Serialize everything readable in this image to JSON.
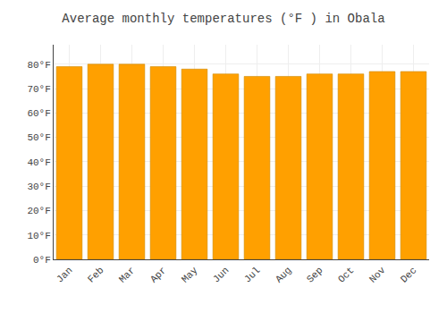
{
  "chart_data": {
    "type": "bar",
    "title": "Average monthly temperatures (°F ) in Obala",
    "categories": [
      "Jan",
      "Feb",
      "Mar",
      "Apr",
      "May",
      "Jun",
      "Jul",
      "Aug",
      "Sep",
      "Oct",
      "Nov",
      "Dec"
    ],
    "values": [
      79,
      80,
      80,
      79,
      78,
      76,
      75,
      75,
      76,
      76,
      77,
      77
    ],
    "color": "#FFA000",
    "ylim": [
      0,
      88
    ],
    "yticks": [
      {
        "value": 0,
        "label": "0°F"
      },
      {
        "value": 10,
        "label": "10°F"
      },
      {
        "value": 20,
        "label": "20°F"
      },
      {
        "value": 30,
        "label": "30°F"
      },
      {
        "value": 40,
        "label": "40°F"
      },
      {
        "value": 50,
        "label": "50°F"
      },
      {
        "value": 60,
        "label": "60°F"
      },
      {
        "value": 70,
        "label": "70°F"
      },
      {
        "value": 80,
        "label": "80°F"
      }
    ],
    "grid": true
  }
}
